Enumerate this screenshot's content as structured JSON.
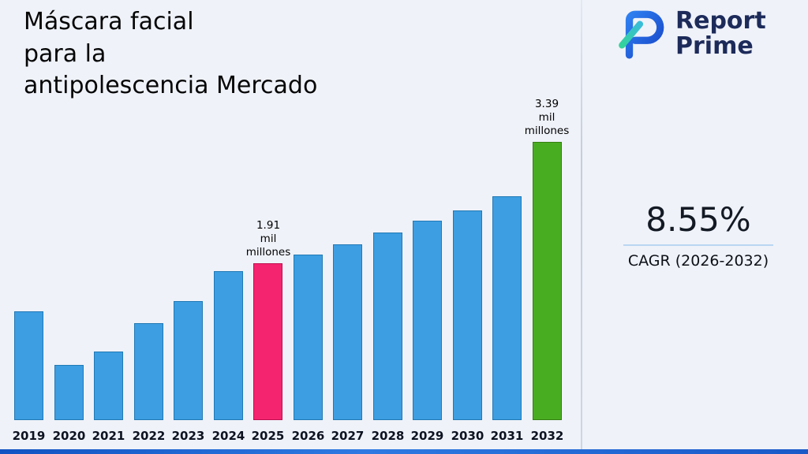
{
  "title": "Máscara facial\npara la\nantipolescencia Mercado",
  "brand": {
    "line1": "Report",
    "line2": "Prime",
    "logo_icon": "report-prime-logo-icon",
    "logo_colors": {
      "blue": "#2457d6",
      "teal": "#35d0a8"
    }
  },
  "stats": {
    "cagr_value": "8.55%",
    "cagr_label": "CAGR (2026-2032)"
  },
  "chart_data": {
    "type": "bar",
    "title": "Máscara facial para la antipolescencia Mercado",
    "xlabel": "",
    "ylabel": "",
    "unit": "mil millones",
    "ylim": [
      0,
      3.6
    ],
    "grid": false,
    "legend": false,
    "categories": [
      "2019",
      "2020",
      "2021",
      "2022",
      "2023",
      "2024",
      "2025",
      "2026",
      "2027",
      "2028",
      "2029",
      "2030",
      "2031",
      "2032"
    ],
    "values": [
      1.33,
      0.67,
      0.84,
      1.18,
      1.45,
      1.82,
      1.91,
      2.02,
      2.14,
      2.29,
      2.43,
      2.56,
      2.73,
      3.39
    ],
    "labeled_points": [
      {
        "category": "2025",
        "value": 1.91
      },
      {
        "category": "2032",
        "value": 3.39
      }
    ],
    "annotations": [
      {
        "category": "2025",
        "text": "1.91\nmil\nmillones"
      },
      {
        "category": "2032",
        "text": "3.39\nmil\nmillones"
      }
    ],
    "styles": {
      "default": {
        "fill": "#3d9ee2",
        "border": "#2179b5"
      },
      "2025": {
        "fill": "#f5246e",
        "border": "#c00e50"
      },
      "2032": {
        "fill": "#49ad21",
        "border": "#357f12"
      }
    }
  }
}
